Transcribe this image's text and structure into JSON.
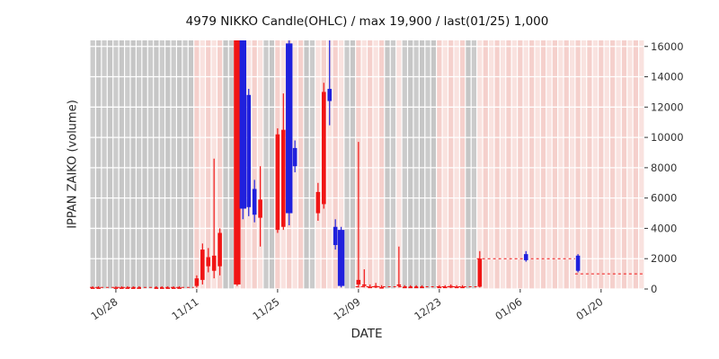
{
  "chart_data": {
    "type": "candlestick",
    "title": "4979 NIKKO Candle(OHLC) / max 19,900 / last(01/25) 1,000",
    "xlabel": "DATE",
    "ylabel": "IPPAN ZAIKO (volume)",
    "ylim": [
      0,
      16400
    ],
    "yticks": [
      0,
      2000,
      4000,
      6000,
      8000,
      10000,
      12000,
      14000,
      16000
    ],
    "x_days_total": 96,
    "x_start_date": "10/24",
    "xticks": [
      {
        "day": 4,
        "label": "10/28"
      },
      {
        "day": 18,
        "label": "11/11"
      },
      {
        "day": 32,
        "label": "11/25"
      },
      {
        "day": 46,
        "label": "12/09"
      },
      {
        "day": 60,
        "label": "12/23"
      },
      {
        "day": 74,
        "label": "01/06"
      },
      {
        "day": 88,
        "label": "01/20"
      }
    ],
    "colors": {
      "up": "#f01515",
      "down": "#2020dd",
      "band_pink_a": "#f5d0cc",
      "band_pink_b": "#f9e2df",
      "band_gray_a": "#cbcbcb",
      "band_gray_b": "#c6c6c6",
      "grid": "#ffffff",
      "tick": "#333333"
    },
    "gray_days": [
      0,
      1,
      2,
      3,
      4,
      5,
      6,
      7,
      8,
      9,
      10,
      11,
      12,
      13,
      14,
      15,
      16,
      17,
      23,
      24,
      30,
      31,
      37,
      38,
      44,
      45,
      51,
      52,
      54,
      55,
      56,
      57,
      58,
      59,
      65,
      66
    ],
    "candles_format": [
      "day",
      "open",
      "high",
      "low",
      "close",
      "wide"
    ],
    "candles": [
      [
        0,
        100,
        180,
        60,
        100
      ],
      [
        1,
        100,
        180,
        60,
        100
      ],
      [
        4,
        100,
        180,
        60,
        100
      ],
      [
        5,
        100,
        180,
        60,
        100
      ],
      [
        6,
        100,
        180,
        60,
        100
      ],
      [
        7,
        100,
        180,
        60,
        100
      ],
      [
        8,
        100,
        180,
        60,
        100
      ],
      [
        11,
        100,
        180,
        60,
        100
      ],
      [
        12,
        100,
        180,
        60,
        100
      ],
      [
        13,
        100,
        180,
        60,
        100
      ],
      [
        14,
        100,
        180,
        60,
        100
      ],
      [
        15,
        100,
        180,
        60,
        100
      ],
      [
        18,
        200,
        900,
        100,
        700
      ],
      [
        19,
        600,
        3000,
        300,
        2600
      ],
      [
        20,
        1500,
        2700,
        1100,
        2100
      ],
      [
        21,
        1200,
        8600,
        700,
        2200
      ],
      [
        22,
        1500,
        4000,
        900,
        3700
      ],
      [
        25,
        300,
        19900,
        200,
        19900,
        1
      ],
      [
        26,
        19900,
        19900,
        4600,
        5300,
        1
      ],
      [
        27,
        12800,
        13200,
        4800,
        5400
      ],
      [
        28,
        6600,
        7200,
        4400,
        4900
      ],
      [
        29,
        4700,
        8100,
        2800,
        5900
      ],
      [
        32,
        3900,
        10600,
        3700,
        10200
      ],
      [
        33,
        4100,
        12900,
        3900,
        10500
      ],
      [
        34,
        16200,
        16400,
        4200,
        5000,
        1
      ],
      [
        35,
        9300,
        9800,
        7700,
        8100
      ],
      [
        39,
        5000,
        7000,
        4500,
        6400
      ],
      [
        40,
        5600,
        13600,
        5300,
        13000
      ],
      [
        41,
        13200,
        16400,
        10800,
        12400
      ],
      [
        42,
        4100,
        4600,
        2600,
        2900
      ],
      [
        43,
        3900,
        4100,
        100,
        200,
        1
      ],
      [
        46,
        300,
        9700,
        100,
        600
      ],
      [
        47,
        200,
        1300,
        100,
        300
      ],
      [
        48,
        100,
        300,
        60,
        150
      ],
      [
        49,
        150,
        400,
        60,
        200
      ],
      [
        50,
        100,
        250,
        60,
        120
      ],
      [
        53,
        200,
        2800,
        100,
        300
      ],
      [
        54,
        100,
        250,
        60,
        150
      ],
      [
        55,
        100,
        250,
        60,
        150
      ],
      [
        56,
        100,
        250,
        60,
        150
      ],
      [
        57,
        100,
        250,
        60,
        150
      ],
      [
        60,
        100,
        250,
        60,
        150
      ],
      [
        61,
        100,
        250,
        60,
        150
      ],
      [
        62,
        100,
        300,
        60,
        200
      ],
      [
        63,
        100,
        250,
        60,
        150
      ],
      [
        64,
        100,
        250,
        60,
        150
      ],
      [
        67,
        150,
        2500,
        100,
        2000
      ],
      [
        75,
        2300,
        2500,
        1800,
        1900
      ],
      [
        84,
        2200,
        2300,
        1100,
        1200
      ]
    ],
    "flat_segments": [
      {
        "from": 0,
        "to": 18,
        "value": 100
      },
      {
        "from": 46,
        "to": 67,
        "value": 150
      },
      {
        "from": 67,
        "to": 84,
        "value": 2000
      },
      {
        "from": 84,
        "to": 96,
        "value": 1000
      }
    ]
  }
}
